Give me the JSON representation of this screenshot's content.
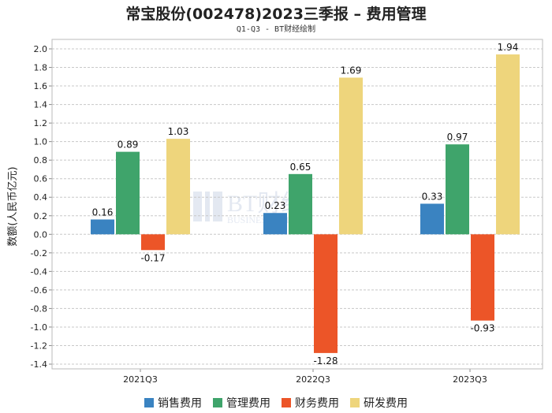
{
  "chart_data": {
    "type": "bar",
    "title": "常宝股份(002478)2023三季报 – 费用管理",
    "subtitle": "Q1-Q3 - BT财经绘制",
    "ylabel": "数额(人民币亿元)",
    "xlabel": "",
    "categories": [
      "2021Q3",
      "2022Q3",
      "2023Q3"
    ],
    "series": [
      {
        "name": "销售费用",
        "color": "#3a83c1",
        "values": [
          0.16,
          0.23,
          0.33
        ]
      },
      {
        "name": "管理费用",
        "color": "#3fa46b",
        "values": [
          0.89,
          0.65,
          0.97
        ]
      },
      {
        "name": "财务费用",
        "color": "#ec5528",
        "values": [
          -0.17,
          -1.28,
          -0.93
        ]
      },
      {
        "name": "研发费用",
        "color": "#eed57c",
        "values": [
          1.03,
          1.69,
          1.94
        ]
      }
    ],
    "ylim": [
      -1.4,
      2.0
    ],
    "yticks": [
      "2.0",
      "1.8",
      "1.6",
      "1.4",
      "1.2",
      "1.0",
      "0.8",
      "0.6",
      "0.4",
      "0.2",
      "0.0",
      "-0.2",
      "-0.4",
      "-0.6",
      "-0.8",
      "-1.0",
      "-1.2",
      "-1.4"
    ],
    "data_labels": [
      [
        "0.16",
        "0.89",
        "-0.17",
        "1.03"
      ],
      [
        "0.23",
        "0.65",
        "-1.28",
        "1.69"
      ],
      [
        "0.33",
        "0.97",
        "-0.93",
        "1.94"
      ]
    ],
    "watermark": {
      "main": "BT财经",
      "sub": "BUSINESSTIMES"
    },
    "grid": true,
    "legend_position": "bottom-center"
  }
}
